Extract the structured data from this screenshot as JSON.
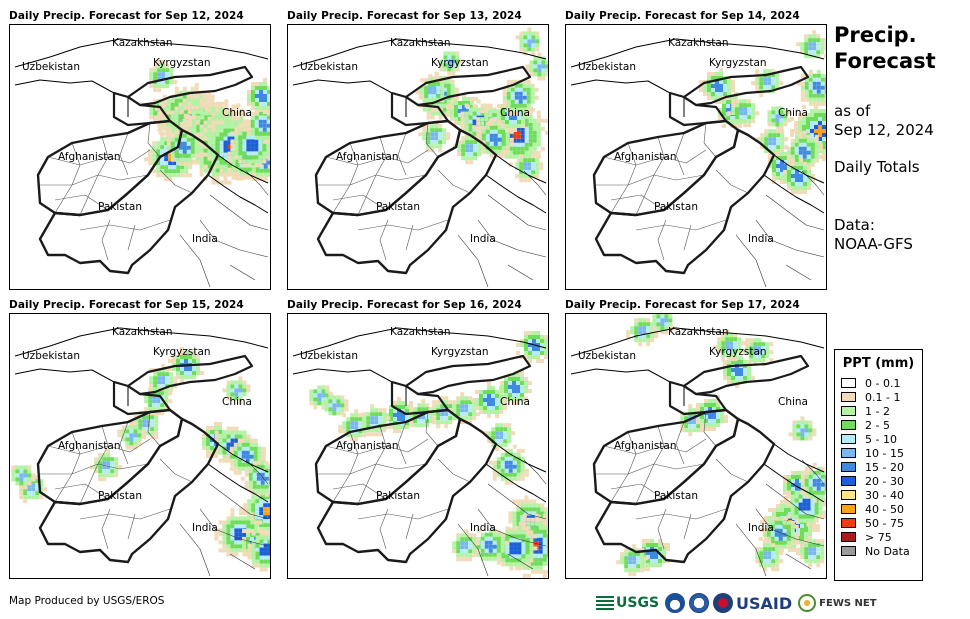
{
  "panels": [
    {
      "title": "Daily Precip. Forecast for Sep 12, 2024",
      "cells": [
        [
          150,
          85,
          4
        ],
        [
          165,
          92,
          7
        ],
        [
          175,
          88,
          11
        ],
        [
          185,
          98,
          12
        ],
        [
          196,
          103,
          11
        ],
        [
          205,
          109,
          13
        ],
        [
          214,
          112,
          12
        ],
        [
          210,
          124,
          12
        ],
        [
          222,
          120,
          12
        ],
        [
          235,
          132,
          7
        ],
        [
          253,
          135,
          6
        ],
        [
          240,
          118,
          8
        ],
        [
          252,
          98,
          6
        ],
        [
          250,
          70,
          5
        ],
        [
          160,
          130,
          9
        ],
        [
          172,
          120,
          6
        ],
        [
          150,
          50,
          4
        ]
      ]
    },
    {
      "title": "Daily Precip. Forecast for Sep 13, 2024",
      "cells": [
        [
          148,
          72,
          7
        ],
        [
          150,
          66,
          6
        ],
        [
          143,
          64,
          4
        ],
        [
          175,
          85,
          5
        ],
        [
          190,
          96,
          7
        ],
        [
          210,
          102,
          9
        ],
        [
          227,
          108,
          11
        ],
        [
          205,
          112,
          6
        ],
        [
          222,
          88,
          5
        ],
        [
          238,
          140,
          4
        ],
        [
          250,
          40,
          3
        ],
        [
          240,
          15,
          3
        ],
        [
          160,
          35,
          3
        ],
        [
          145,
          110,
          4
        ],
        [
          180,
          122,
          4
        ],
        [
          230,
          70,
          6
        ]
      ]
    },
    {
      "title": "Daily Precip. Forecast for Sep 14, 2024",
      "cells": [
        [
          150,
          60,
          5
        ],
        [
          165,
          84,
          5
        ],
        [
          176,
          85,
          4
        ],
        [
          205,
          115,
          4
        ],
        [
          215,
          140,
          5
        ],
        [
          242,
          112,
          5
        ],
        [
          252,
          104,
          10
        ],
        [
          236,
          125,
          6
        ],
        [
          250,
          60,
          6
        ],
        [
          245,
          20,
          4
        ],
        [
          200,
          55,
          4
        ],
        [
          230,
          150,
          5
        ],
        [
          210,
          90,
          3
        ]
      ]
    },
    {
      "title": "Daily Precip. Forecast for Sep 15, 2024",
      "cells": [
        [
          150,
          65,
          4
        ],
        [
          145,
          84,
          4
        ],
        [
          135,
          108,
          4
        ],
        [
          120,
          120,
          3
        ],
        [
          175,
          50,
          5
        ],
        [
          205,
          125,
          5
        ],
        [
          222,
          130,
          7
        ],
        [
          235,
          140,
          6
        ],
        [
          255,
          195,
          9
        ],
        [
          250,
          162,
          6
        ],
        [
          228,
          218,
          8
        ],
        [
          245,
          228,
          5
        ],
        [
          255,
          235,
          7
        ],
        [
          225,
          75,
          3
        ],
        [
          20,
          172,
          4
        ],
        [
          10,
          160,
          3
        ],
        [
          95,
          150,
          4
        ]
      ]
    },
    {
      "title": "Daily Precip. Forecast for Sep 16, 2024",
      "cells": [
        [
          110,
          100,
          5
        ],
        [
          85,
          105,
          4
        ],
        [
          65,
          110,
          4
        ],
        [
          132,
          100,
          4
        ],
        [
          155,
          97,
          4
        ],
        [
          175,
          93,
          4
        ],
        [
          200,
          85,
          5
        ],
        [
          225,
          72,
          5
        ],
        [
          245,
          30,
          5
        ],
        [
          220,
          150,
          6
        ],
        [
          240,
          205,
          8
        ],
        [
          245,
          230,
          11
        ],
        [
          225,
          232,
          8
        ],
        [
          200,
          230,
          6
        ],
        [
          175,
          230,
          4
        ],
        [
          30,
          80,
          3
        ],
        [
          45,
          90,
          3
        ],
        [
          210,
          120,
          4
        ]
      ]
    },
    {
      "title": "Daily Precip. Forecast for Sep 17, 2024",
      "cells": [
        [
          125,
          105,
          4
        ],
        [
          143,
          98,
          5
        ],
        [
          170,
          55,
          5
        ],
        [
          190,
          35,
          4
        ],
        [
          162,
          30,
          4
        ],
        [
          230,
          170,
          5
        ],
        [
          222,
          210,
          10
        ],
        [
          212,
          218,
          6
        ],
        [
          238,
          190,
          7
        ],
        [
          250,
          168,
          6
        ],
        [
          245,
          236,
          4
        ],
        [
          200,
          240,
          4
        ],
        [
          75,
          15,
          4
        ],
        [
          95,
          5,
          3
        ],
        [
          85,
          238,
          5
        ],
        [
          65,
          245,
          4
        ],
        [
          235,
          115,
          3
        ]
      ]
    }
  ],
  "labels": {
    "kazakhstan": "Kazakhstan",
    "uzbekistan": "Uzbekistan",
    "kyrgyzstan": "Kyrgyzstan",
    "china": "China",
    "afghanistan": "Afghanistan",
    "pakistan": "Pakistan",
    "india": "India"
  },
  "side": {
    "title_line1": "Precip.",
    "title_line2": "Forecast",
    "asof_line1": "as of",
    "asof_line2": "Sep 12, 2024",
    "daily_totals": "Daily Totals",
    "data_line1": "Data:",
    "data_line2": "NOAA-GFS"
  },
  "legend": {
    "title": "PPT (mm)",
    "items": [
      {
        "label": "0 - 0.1",
        "color": "#ffffff"
      },
      {
        "label": "0.1 - 1",
        "color": "#f2dbb8"
      },
      {
        "label": "1 - 2",
        "color": "#b4f3a6"
      },
      {
        "label": "2 - 5",
        "color": "#6fdc5a"
      },
      {
        "label": "5 - 10",
        "color": "#b6ecf8"
      },
      {
        "label": "10 - 15",
        "color": "#7ab7ee"
      },
      {
        "label": "15 - 20",
        "color": "#3f8ae0"
      },
      {
        "label": "20 - 30",
        "color": "#1c5fd8"
      },
      {
        "label": "30 - 40",
        "color": "#fde586"
      },
      {
        "label": "40 - 50",
        "color": "#f9a21a"
      },
      {
        "label": "50 - 75",
        "color": "#ee3a0e"
      },
      {
        "label": "> 75",
        "color": "#a51d1d"
      },
      {
        "label": "No Data",
        "color": "#9a9a9a"
      }
    ]
  },
  "footer": {
    "produced_by": "Map Produced by USGS/EROS",
    "usgs": "USGS",
    "usaid": "USAID",
    "fews": "FEWS NET"
  }
}
